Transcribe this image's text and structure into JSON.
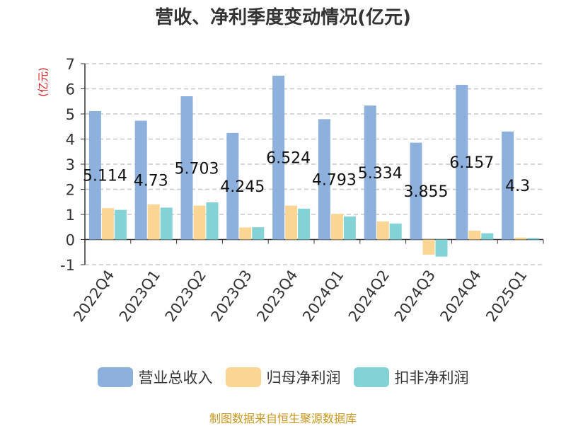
{
  "chart_data": {
    "type": "bar",
    "title": "营收、净利季度变动情况(亿元)",
    "ylabel": "(亿元)",
    "xlabel": "",
    "ylim": [
      -1,
      7
    ],
    "yticks": [
      -1,
      0,
      1,
      2,
      3,
      4,
      5,
      6,
      7
    ],
    "grid": true,
    "legend_position": "bottom",
    "categories": [
      "2022Q4",
      "2023Q1",
      "2023Q2",
      "2023Q3",
      "2023Q4",
      "2024Q1",
      "2024Q2",
      "2024Q3",
      "2024Q4",
      "2025Q1"
    ],
    "series": [
      {
        "name": "营业总收入",
        "color": "#8eb0dc",
        "values": [
          5.114,
          4.73,
          5.703,
          4.245,
          6.524,
          4.793,
          5.334,
          3.855,
          6.157,
          4.3
        ],
        "labels": [
          "5.114",
          "4.73",
          "5.703",
          "4.245",
          "6.524",
          "4.793",
          "5.334",
          "3.855",
          "6.157",
          "4.3"
        ]
      },
      {
        "name": "归母净利润",
        "color": "#fbd593",
        "values": [
          1.25,
          1.4,
          1.35,
          0.48,
          1.35,
          1.02,
          0.72,
          -0.6,
          0.35,
          0.08
        ]
      },
      {
        "name": "扣非净利润",
        "color": "#83d3d6",
        "values": [
          1.18,
          1.27,
          1.48,
          0.49,
          1.23,
          0.92,
          0.64,
          -0.68,
          0.25,
          0.06
        ]
      }
    ]
  },
  "source": "制图数据来自恒生聚源数据库"
}
